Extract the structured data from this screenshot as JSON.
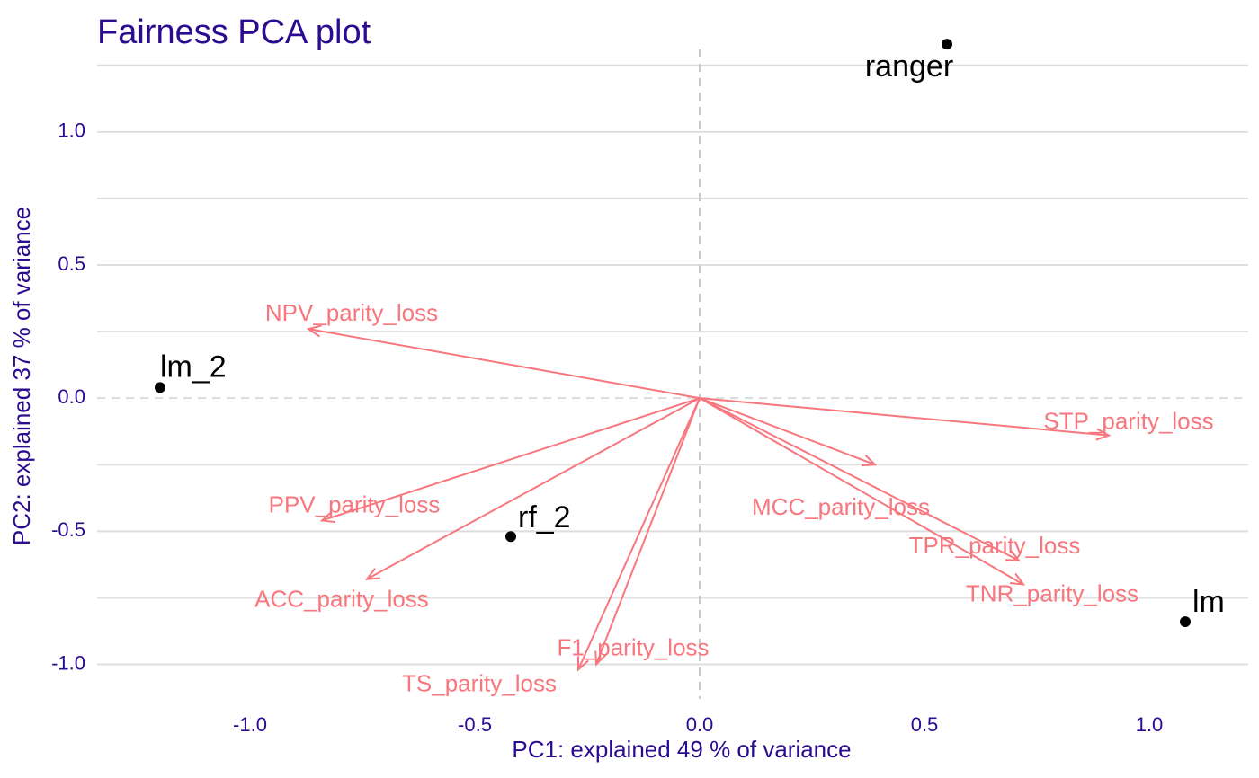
{
  "chart_data": {
    "type": "scatter",
    "title": "Fairness PCA plot",
    "xlabel": "PC1: explained 49 % of variance",
    "ylabel": "PC2: explained 37 % of variance",
    "xlim": [
      -1.34,
      1.22
    ],
    "ylim": [
      -1.13,
      1.31
    ],
    "x_ticks": [
      -1.0,
      -0.5,
      0.0,
      0.5,
      1.0
    ],
    "x_tick_labels": [
      "-1.0",
      "-0.5",
      "0.0",
      "0.5",
      "1.0"
    ],
    "y_ticks": [
      -1.0,
      -0.5,
      0.0,
      0.5,
      1.0
    ],
    "y_tick_labels": [
      "-1.0",
      "-0.5",
      "0.0",
      "0.5",
      "1.0"
    ],
    "grid": true,
    "reference_lines": {
      "x": 0.0,
      "y": 0.0,
      "style": "dashed"
    },
    "points": [
      {
        "label": "ranger",
        "x": 0.55,
        "y": 1.33
      },
      {
        "label": "lm_2",
        "x": -1.2,
        "y": 0.04
      },
      {
        "label": "rf_2",
        "x": -0.42,
        "y": -0.52
      },
      {
        "label": "lm",
        "x": 1.08,
        "y": -0.84
      }
    ],
    "loadings": [
      {
        "label": "NPV_parity_loss",
        "x": -0.87,
        "y": 0.26
      },
      {
        "label": "STP_parity_loss",
        "x": 0.91,
        "y": -0.14
      },
      {
        "label": "MCC_parity_loss",
        "x": 0.39,
        "y": -0.25
      },
      {
        "label": "PPV_parity_loss",
        "x": -0.84,
        "y": -0.46
      },
      {
        "label": "ACC_parity_loss",
        "x": -0.74,
        "y": -0.68
      },
      {
        "label": "TPR_parity_loss",
        "x": 0.71,
        "y": -0.61
      },
      {
        "label": "TNR_parity_loss",
        "x": 0.72,
        "y": -0.7
      },
      {
        "label": "F1_parity_loss",
        "x": -0.23,
        "y": -1.0
      },
      {
        "label": "TS_parity_loss",
        "x": -0.27,
        "y": -1.02
      }
    ]
  },
  "colors": {
    "title": "#2B0C90",
    "axis_text": "#2B0C90",
    "arrows": "#F8767D",
    "points": "#000000",
    "grid": "#DEDEDE",
    "reference": "#C8C8C8"
  }
}
